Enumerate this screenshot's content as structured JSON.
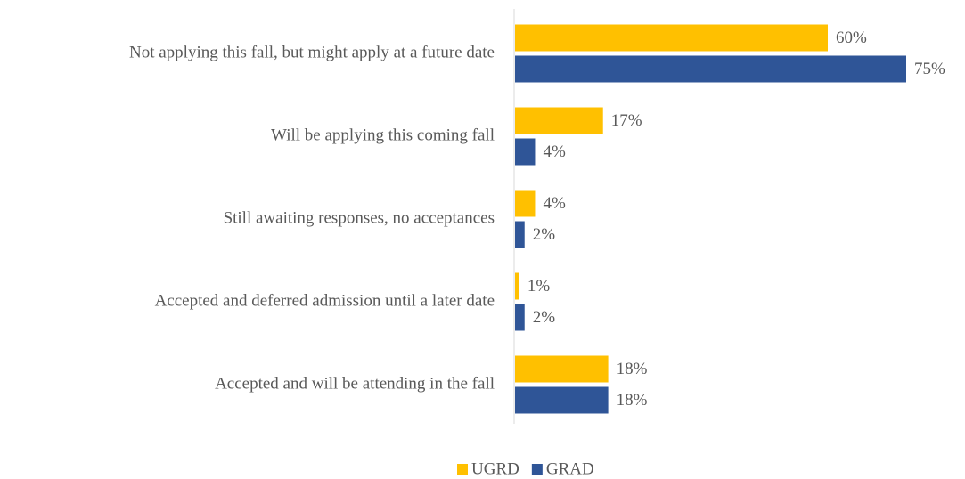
{
  "chart_data": {
    "type": "bar",
    "orientation": "horizontal",
    "categories": [
      "Not applying this fall, but might apply at a future date",
      "Will be applying this coming fall",
      "Still awaiting responses, no acceptances",
      "Accepted and deferred admission until a later date",
      "Accepted and will be attending in the fall"
    ],
    "series": [
      {
        "name": "UGRD",
        "color": "#ffc000",
        "values": [
          60,
          17,
          4,
          1,
          18
        ],
        "value_labels": [
          "60%",
          "17%",
          "4%",
          "1%",
          "18%"
        ]
      },
      {
        "name": "GRAD",
        "color": "#2f5597",
        "values": [
          75,
          4,
          2,
          2,
          18
        ],
        "value_labels": [
          "75%",
          "4%",
          "2%",
          "2%",
          "18%"
        ]
      }
    ],
    "legend": "bottom"
  }
}
